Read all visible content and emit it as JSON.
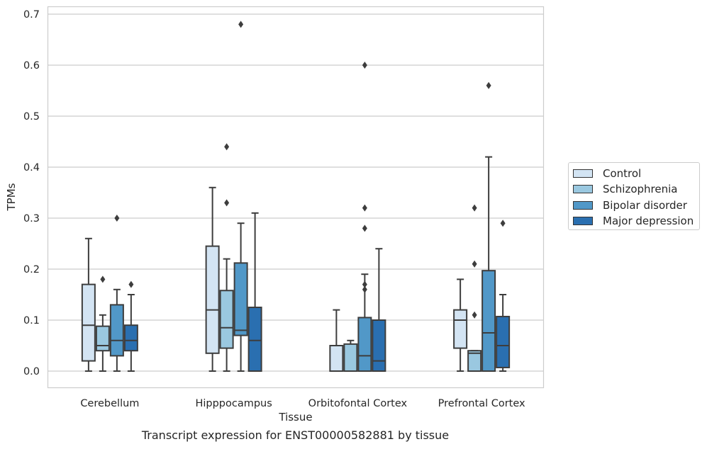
{
  "chart_data": {
    "type": "boxplot",
    "xlabel": "Tissue",
    "ylabel": "TPMs",
    "caption": "Transcript expression for ENST00000582881 by tissue",
    "ylim": [
      -0.033,
      0.715
    ],
    "yticks": [
      "0.0",
      "0.1",
      "0.2",
      "0.3",
      "0.4",
      "0.5",
      "0.6",
      "0.7"
    ],
    "ytick_values": [
      0,
      0.1,
      0.2,
      0.3,
      0.4,
      0.5,
      0.6,
      0.7
    ],
    "grid": "horizontal",
    "legend_position": "right",
    "categories": [
      "Cerebellum",
      "Hipppocampus",
      "Orbitofontal Cortex",
      "Prefrontal Cortex"
    ],
    "series": [
      {
        "name": "Control",
        "color": "#d3e4f3",
        "boxes": [
          {
            "whislo": 0.0,
            "q1": 0.02,
            "med": 0.09,
            "q3": 0.17,
            "whishi": 0.26,
            "fliers": []
          },
          {
            "whislo": 0.0,
            "q1": 0.035,
            "med": 0.12,
            "q3": 0.245,
            "whishi": 0.36,
            "fliers": []
          },
          {
            "whislo": 0.0,
            "q1": 0.0,
            "med": 0.0,
            "q3": 0.05,
            "whishi": 0.12,
            "fliers": []
          },
          {
            "whislo": 0.0,
            "q1": 0.045,
            "med": 0.1,
            "q3": 0.12,
            "whishi": 0.18,
            "fliers": []
          }
        ]
      },
      {
        "name": "Schizophrenia",
        "color": "#9ac8e0",
        "boxes": [
          {
            "whislo": 0.0,
            "q1": 0.04,
            "med": 0.05,
            "q3": 0.088,
            "whishi": 0.11,
            "fliers": [
              0.18
            ]
          },
          {
            "whislo": 0.0,
            "q1": 0.045,
            "med": 0.085,
            "q3": 0.158,
            "whishi": 0.22,
            "fliers": [
              0.33,
              0.44
            ]
          },
          {
            "whislo": 0.0,
            "q1": 0.0,
            "med": 0.0,
            "q3": 0.053,
            "whishi": 0.06,
            "fliers": []
          },
          {
            "whislo": 0.0,
            "q1": 0.0,
            "med": 0.035,
            "q3": 0.04,
            "whishi": 0.04,
            "fliers": [
              0.11,
              0.21,
              0.32
            ]
          }
        ]
      },
      {
        "name": "Bipolar disorder",
        "color": "#5198c8",
        "boxes": [
          {
            "whislo": 0.0,
            "q1": 0.03,
            "med": 0.06,
            "q3": 0.13,
            "whishi": 0.16,
            "fliers": [
              0.3
            ]
          },
          {
            "whislo": 0.0,
            "q1": 0.07,
            "med": 0.08,
            "q3": 0.212,
            "whishi": 0.29,
            "fliers": [
              0.68
            ]
          },
          {
            "whislo": 0.0,
            "q1": 0.0,
            "med": 0.03,
            "q3": 0.105,
            "whishi": 0.19,
            "fliers": [
              0.16,
              0.17,
              0.28,
              0.32,
              0.6
            ]
          },
          {
            "whislo": 0.0,
            "q1": 0.0,
            "med": 0.075,
            "q3": 0.197,
            "whishi": 0.42,
            "fliers": [
              0.56
            ]
          }
        ]
      },
      {
        "name": "Major depression",
        "color": "#2a6fb0",
        "boxes": [
          {
            "whislo": 0.0,
            "q1": 0.04,
            "med": 0.06,
            "q3": 0.09,
            "whishi": 0.15,
            "fliers": [
              0.17
            ]
          },
          {
            "whislo": 0.0,
            "q1": 0.0,
            "med": 0.06,
            "q3": 0.125,
            "whishi": 0.31,
            "fliers": []
          },
          {
            "whislo": 0.0,
            "q1": 0.0,
            "med": 0.02,
            "q3": 0.1,
            "whishi": 0.24,
            "fliers": []
          },
          {
            "whislo": 0.0,
            "q1": 0.007,
            "med": 0.05,
            "q3": 0.107,
            "whishi": 0.15,
            "fliers": [
              0.29
            ]
          }
        ]
      }
    ]
  }
}
